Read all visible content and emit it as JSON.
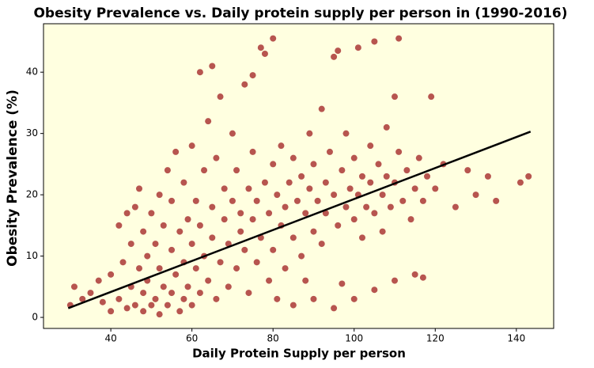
{
  "chart_data": {
    "type": "scatter",
    "title": "Obesity Prevalence vs. Daily protein supply per person in (1990-2016)",
    "x_label": "Daily Protein Supply per person",
    "y_label": "Obesity Prevalence (%)",
    "color": "#a52a2a",
    "background": "#ffffe0",
    "x": [
      30,
      31,
      33,
      35,
      37,
      38,
      40,
      40,
      42,
      42,
      43,
      44,
      44,
      45,
      45,
      46,
      46,
      47,
      47,
      48,
      48,
      48,
      49,
      49,
      50,
      50,
      51,
      51,
      52,
      52,
      52,
      53,
      53,
      54,
      54,
      55,
      55,
      55,
      56,
      56,
      57,
      57,
      58,
      58,
      58,
      59,
      59,
      60,
      60,
      60,
      61,
      61,
      62,
      62,
      62,
      63,
      63,
      64,
      64,
      65,
      65,
      65,
      66,
      66,
      67,
      67,
      68,
      68,
      69,
      69,
      70,
      70,
      71,
      71,
      72,
      72,
      73,
      73,
      74,
      74,
      75,
      75,
      75,
      76,
      76,
      77,
      77,
      78,
      78,
      79,
      79,
      80,
      80,
      80,
      81,
      81,
      82,
      82,
      83,
      83,
      84,
      85,
      85,
      85,
      86,
      87,
      87,
      88,
      88,
      89,
      89,
      90,
      90,
      90,
      91,
      92,
      92,
      93,
      93,
      94,
      95,
      95,
      95,
      96,
      96,
      97,
      97,
      98,
      98,
      99,
      100,
      100,
      100,
      101,
      101,
      102,
      102,
      103,
      104,
      104,
      105,
      105,
      105,
      106,
      107,
      107,
      108,
      108,
      109,
      110,
      110,
      110,
      111,
      111,
      112,
      113,
      114,
      115,
      115,
      116,
      117,
      117,
      118,
      119,
      120,
      122,
      125,
      128,
      130,
      133,
      135,
      141,
      143
    ],
    "values": [
      2,
      5,
      3,
      4,
      6,
      2.5,
      1,
      7,
      3,
      15,
      9,
      1.5,
      17,
      5,
      12,
      2,
      18,
      8,
      21,
      1,
      4,
      14,
      10,
      6,
      2,
      17,
      3,
      12,
      0.5,
      8,
      20,
      5,
      15,
      2,
      24,
      4,
      11,
      19,
      7,
      27,
      1,
      14,
      3,
      9,
      22,
      16,
      5,
      12,
      28,
      2,
      8,
      19,
      40,
      4,
      15,
      10,
      24,
      32,
      6,
      41,
      13,
      18,
      3,
      26,
      9,
      36,
      16,
      21,
      5,
      12,
      19,
      30,
      8,
      24,
      14,
      17,
      38,
      11,
      21,
      4,
      39.5,
      16,
      27,
      9,
      19,
      44,
      13,
      43,
      22,
      6,
      17,
      45.5,
      25,
      11,
      20,
      3,
      15,
      28,
      18,
      8,
      22,
      2,
      13,
      26,
      19,
      10,
      23,
      6,
      17,
      21,
      30,
      3,
      14,
      25,
      19,
      12,
      34,
      22,
      17,
      27,
      1.5,
      42.5,
      20,
      43.5,
      15,
      5.5,
      24,
      18,
      30,
      21,
      3,
      16,
      26,
      44,
      20,
      23,
      13,
      18,
      28,
      22,
      45,
      4.5,
      17,
      25,
      20,
      14,
      23,
      31,
      18,
      6,
      22,
      36,
      45.5,
      27,
      19,
      24,
      16,
      7,
      21,
      26,
      6.5,
      19,
      23,
      36,
      21,
      25,
      18,
      24,
      20,
      23,
      19,
      22,
      23
    ],
    "trend": {
      "x": [
        29.5,
        143.5
      ],
      "values": [
        1.5,
        30.3
      ],
      "color": "#000000"
    },
    "xlim": [
      23.4,
      149.2
    ],
    "ylim": [
      -1.8,
      47.9
    ],
    "xticks": [
      40,
      60,
      80,
      100,
      120,
      140
    ],
    "yticks": [
      0,
      10,
      20,
      30,
      40
    ]
  }
}
